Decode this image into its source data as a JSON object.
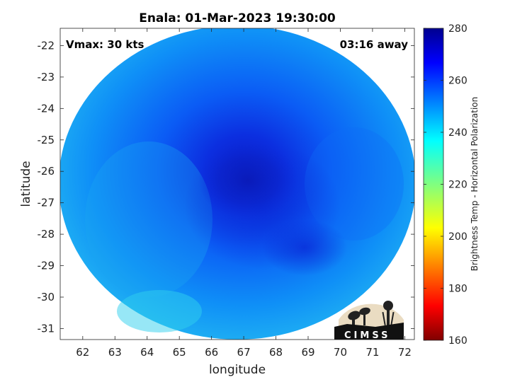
{
  "chart_data": {
    "type": "heatmap",
    "title": "Enala: 01-Mar-2023 19:30:00",
    "xlabel": "longitude",
    "ylabel": "latitude",
    "xlim": [
      61.3,
      72.3
    ],
    "ylim": [
      -31.35,
      -21.45
    ],
    "x_ticks": [
      62,
      63,
      64,
      65,
      66,
      67,
      68,
      69,
      70,
      71,
      72
    ],
    "y_ticks": [
      -22,
      -23,
      -24,
      -25,
      -26,
      -27,
      -28,
      -29,
      -30,
      -31
    ],
    "center": [
      67.0,
      -26.4
    ],
    "colorbar": {
      "label": "Brightness Temp - Horizontal Polarization",
      "range": [
        160,
        280
      ],
      "ticks": [
        160,
        180,
        200,
        220,
        240,
        260,
        280
      ],
      "colormap": "jet"
    },
    "annotations": {
      "left": "Vmax: 30 kts",
      "right": "03:16 away"
    },
    "logo_text": "CIMSS"
  }
}
